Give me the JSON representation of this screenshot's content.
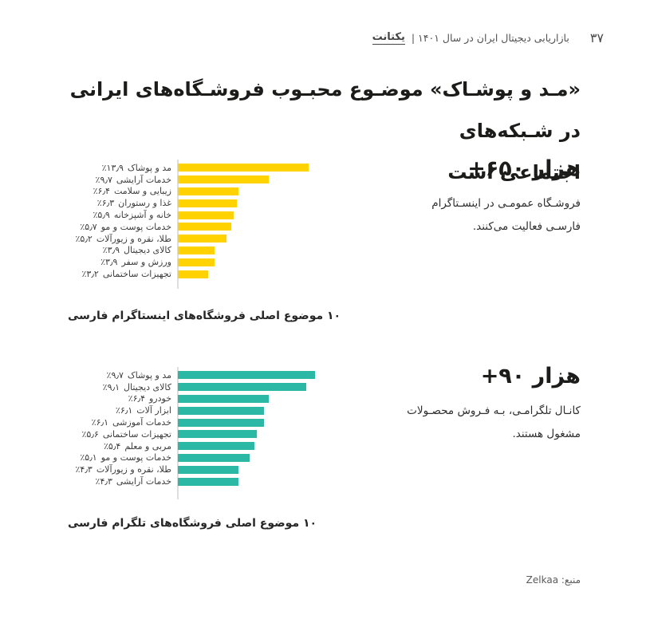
{
  "page": {
    "background": "#ffffff",
    "page_number": "۳۷",
    "header_text": "بازاریابی دیجیتال ایران در سال ۱۴۰۱ |",
    "brand": "یکتانت",
    "title_line1": "«مـد و پوشـاک» موضـوع محبـوب فروشـگاه‌های ایرانی در شـبکه‌های",
    "title_line2": "اجتماعی است",
    "source_prefix": "منبع:",
    "source_name": "Zelkaa"
  },
  "colors": {
    "yellow": "#FFD200",
    "teal": "#2BB9A6",
    "axis": "#dedede",
    "text_dark": "#1c1c1b"
  },
  "chart_data": [
    {
      "type": "bar",
      "orientation": "horizontal",
      "bar_color": "#FFD200",
      "stat_value": "+۶۵۰ هزار",
      "stat_description": "فروشـگاه عمومـی در اینسـتاگرام فارسـی فعالیت می‌کنند.",
      "caption": "۱۰ موضوع اصلی فروشگاه‌های اینستاگرام فارسی",
      "categories": [
        "مد و پوشاک",
        "خدمات آرایشی",
        "زیبایی و سلامت",
        "غذا و رستوران",
        "خانه و آشپزخانه",
        "خدمات پوست و مو",
        "طلا، نقره و زیورآلات",
        "کالای دیجیتال",
        "ورزش و سفر",
        "تجهیزات ساختمانی"
      ],
      "values": [
        13.9,
        9.7,
        6.4,
        6.3,
        5.9,
        5.7,
        5.2,
        3.9,
        3.9,
        3.2
      ],
      "value_labels": [
        "٪۱۳٫۹",
        "٪۹٫۷",
        "٪۶٫۴",
        "٪۶٫۳",
        "٪۵٫۹",
        "٪۵٫۷",
        "٪۵٫۲",
        "٪۳٫۹",
        "٪۳٫۹",
        "٪۳٫۲"
      ],
      "xlim": [
        0,
        13.9
      ],
      "grid": false,
      "legend": false
    },
    {
      "type": "bar",
      "orientation": "horizontal",
      "bar_color": "#2BB9A6",
      "stat_value": "+۹۰ هزار",
      "stat_description": "کانـال تلگرامـی، بـه فـروش محصـولات مشغول هستند.",
      "caption": "۱۰ موضوع اصلی فروشگاه‌های تلگرام فارسی",
      "categories": [
        "مد و پوشاک",
        "کالای دیجیتال",
        "خودرو",
        "ابزار آلات",
        "خدمات آموزشی",
        "تجهیزات ساختمانی",
        "مربی و معلم",
        "خدمات پوست و مو",
        "طلا، نقره و زیورآلات",
        "خدمات آرایشی"
      ],
      "values": [
        9.7,
        9.1,
        6.4,
        6.1,
        6.1,
        5.6,
        5.4,
        5.1,
        4.3,
        4.3
      ],
      "value_labels": [
        "٪۹٫۷",
        "٪۹٫۱",
        "٪۶٫۴",
        "٪۶٫۱",
        "٪۶٫۱",
        "٪۵٫۶",
        "٪۵٫۴",
        "٪۵٫۱",
        "٪۴٫۳",
        "٪۴٫۳"
      ],
      "xlim": [
        0,
        9.7
      ],
      "grid": false,
      "legend": false
    }
  ]
}
